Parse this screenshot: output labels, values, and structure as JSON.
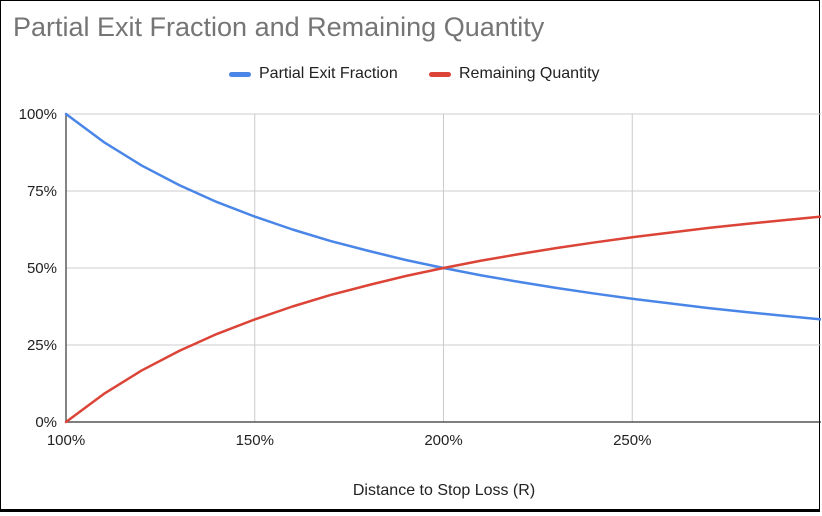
{
  "chart_data": {
    "type": "line",
    "title": "Partial Exit Fraction and Remaining Quantity",
    "xlabel": "Distance to Stop Loss (R)",
    "ylabel": "",
    "xlim": [
      1.0,
      3.0
    ],
    "ylim": [
      0,
      1.0
    ],
    "x_ticks": [
      "100%",
      "150%",
      "200%",
      "250%"
    ],
    "x_tick_values": [
      1.0,
      1.5,
      2.0,
      2.5
    ],
    "y_ticks": [
      "0%",
      "25%",
      "50%",
      "75%",
      "100%"
    ],
    "y_tick_values": [
      0,
      0.25,
      0.5,
      0.75,
      1.0
    ],
    "grid": true,
    "legend_position": "top",
    "x": [
      1.0,
      1.1,
      1.2,
      1.3,
      1.4,
      1.5,
      1.6,
      1.7,
      1.8,
      1.9,
      2.0,
      2.1,
      2.2,
      2.3,
      2.4,
      2.5,
      2.6,
      2.7,
      2.8,
      2.9,
      3.0
    ],
    "series": [
      {
        "name": "Partial Exit Fraction",
        "color": "#4a86e8",
        "values": [
          1.0,
          0.909,
          0.833,
          0.769,
          0.714,
          0.667,
          0.625,
          0.588,
          0.556,
          0.526,
          0.5,
          0.476,
          0.455,
          0.435,
          0.417,
          0.4,
          0.385,
          0.37,
          0.357,
          0.345,
          0.333
        ]
      },
      {
        "name": "Remaining Quantity",
        "color": "#db4437",
        "values": [
          0.0,
          0.091,
          0.167,
          0.231,
          0.286,
          0.333,
          0.375,
          0.412,
          0.444,
          0.474,
          0.5,
          0.524,
          0.545,
          0.565,
          0.583,
          0.6,
          0.615,
          0.63,
          0.643,
          0.655,
          0.667
        ]
      }
    ]
  }
}
